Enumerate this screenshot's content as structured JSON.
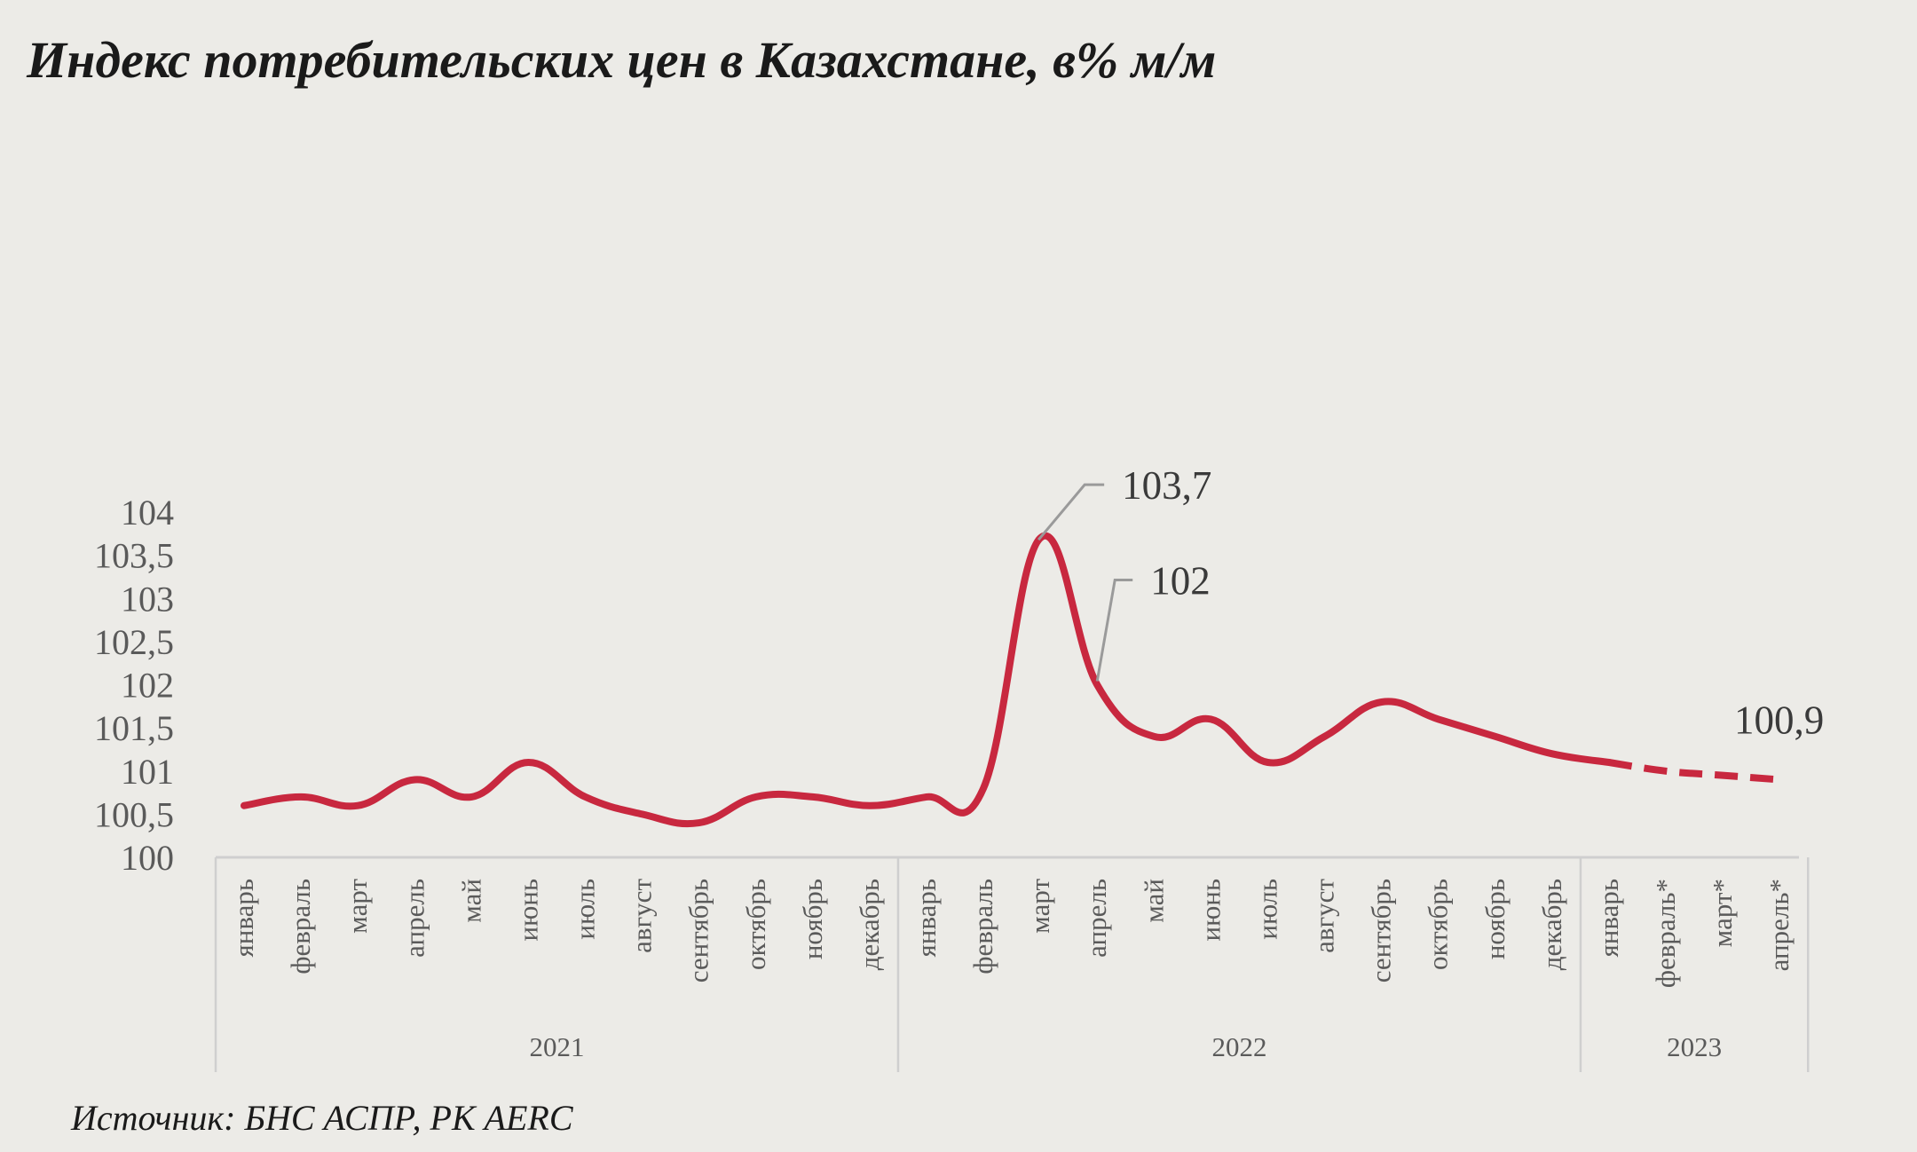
{
  "title": "Индекс потребительских цен в Казахстане, в% м/м",
  "source": "Источник: БНС АСПР, РК AERC",
  "chart_data": {
    "type": "line",
    "title": "Индекс потребительских цен в Казахстане, в% м/м",
    "xlabel": "",
    "ylabel": "",
    "ylim": [
      100,
      104
    ],
    "yticks": [
      100,
      100.5,
      101,
      101.5,
      102,
      102.5,
      103,
      103.5,
      104
    ],
    "ytick_labels": [
      "100",
      "100,5",
      "101",
      "101,5",
      "102",
      "102,5",
      "103",
      "103,5",
      "104"
    ],
    "grid": false,
    "groups": [
      {
        "label": "2021",
        "start": 0,
        "count": 12
      },
      {
        "label": "2022",
        "start": 12,
        "count": 12
      },
      {
        "label": "2023",
        "start": 24,
        "count": 4
      }
    ],
    "categories": [
      "январь",
      "февраль",
      "март",
      "апрель",
      "май",
      "июнь",
      "июль",
      "август",
      "сентябрь",
      "октябрь",
      "ноябрь",
      "декабрь",
      "январь",
      "февраль",
      "март",
      "апрель",
      "май",
      "июнь",
      "июль",
      "август",
      "сентябрь",
      "октябрь",
      "ноябрь",
      "декабрь",
      "январь",
      "февраль*",
      "март*",
      "апрель*"
    ],
    "series": [
      {
        "values": [
          100.6,
          100.7,
          100.6,
          100.9,
          100.7,
          101.1,
          100.7,
          100.5,
          100.4,
          100.7,
          100.7,
          100.6,
          100.7,
          100.8,
          103.7,
          102.0,
          101.4,
          101.6,
          101.1,
          101.4,
          101.8,
          101.6,
          101.4,
          101.2,
          101.1,
          101.0,
          100.95,
          100.9
        ],
        "color": "#c8283f",
        "dashed_from_index": 24
      }
    ],
    "annotations": [
      {
        "index": 14,
        "text": "103,7"
      },
      {
        "index": 15,
        "text": "102"
      },
      {
        "index": 27,
        "text": "100,9"
      }
    ]
  }
}
